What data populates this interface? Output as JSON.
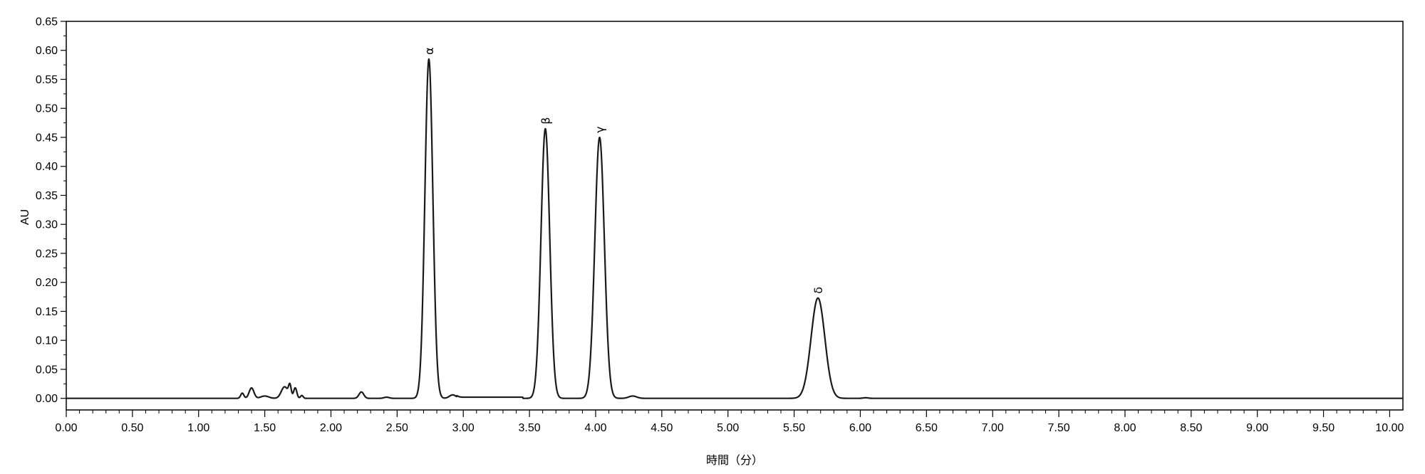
{
  "chart_data": {
    "type": "line",
    "title": "",
    "xlabel": "時間（分）",
    "ylabel": "AU",
    "xlim": [
      0,
      10.1
    ],
    "ylim": [
      -0.02,
      0.65
    ],
    "xticks": [
      "0.00",
      "0.50",
      "1.00",
      "1.50",
      "2.00",
      "2.50",
      "3.00",
      "3.50",
      "4.00",
      "4.50",
      "5.00",
      "5.50",
      "6.00",
      "6.50",
      "7.00",
      "7.50",
      "8.00",
      "8.50",
      "9.00",
      "9.50",
      "10.00"
    ],
    "yticks": [
      "0.00",
      "0.05",
      "0.10",
      "0.15",
      "0.20",
      "0.25",
      "0.30",
      "0.35",
      "0.40",
      "0.45",
      "0.50",
      "0.55",
      "0.60",
      "0.65"
    ],
    "grid": false,
    "legend": "none",
    "line_color": "#1a1a1a",
    "series": [
      {
        "peaks": [
          {
            "t": 1.33,
            "h": 0.009,
            "w": 0.012
          },
          {
            "t": 1.4,
            "h": 0.018,
            "w": 0.018
          },
          {
            "t": 1.5,
            "h": 0.004,
            "w": 0.03
          },
          {
            "t": 1.65,
            "h": 0.02,
            "w": 0.025
          },
          {
            "t": 1.69,
            "h": 0.02,
            "w": 0.01
          },
          {
            "t": 1.73,
            "h": 0.018,
            "w": 0.012
          },
          {
            "t": 1.78,
            "h": 0.005,
            "w": 0.01
          },
          {
            "t": 2.23,
            "h": 0.011,
            "w": 0.018
          },
          {
            "t": 2.42,
            "h": 0.002,
            "w": 0.02
          },
          {
            "t": 2.74,
            "h": 0.585,
            "w": 0.03
          },
          {
            "t": 2.92,
            "h": 0.006,
            "w": 0.025
          },
          {
            "t": 3.62,
            "h": 0.465,
            "w": 0.033
          },
          {
            "t": 4.03,
            "h": 0.45,
            "w": 0.036
          },
          {
            "t": 4.28,
            "h": 0.004,
            "w": 0.03
          },
          {
            "t": 5.68,
            "h": 0.173,
            "w": 0.052
          },
          {
            "t": 6.04,
            "h": 0.001,
            "w": 0.02
          }
        ],
        "plateaus": [
          {
            "from": 2.95,
            "to": 3.45,
            "level": 0.002
          }
        ]
      }
    ],
    "annotations": [
      {
        "text": "α",
        "x": 2.74,
        "y": 0.585
      },
      {
        "text": "β",
        "x": 3.62,
        "y": 0.465
      },
      {
        "text": "γ",
        "x": 4.03,
        "y": 0.45
      },
      {
        "text": "δ",
        "x": 5.68,
        "y": 0.173
      }
    ]
  }
}
